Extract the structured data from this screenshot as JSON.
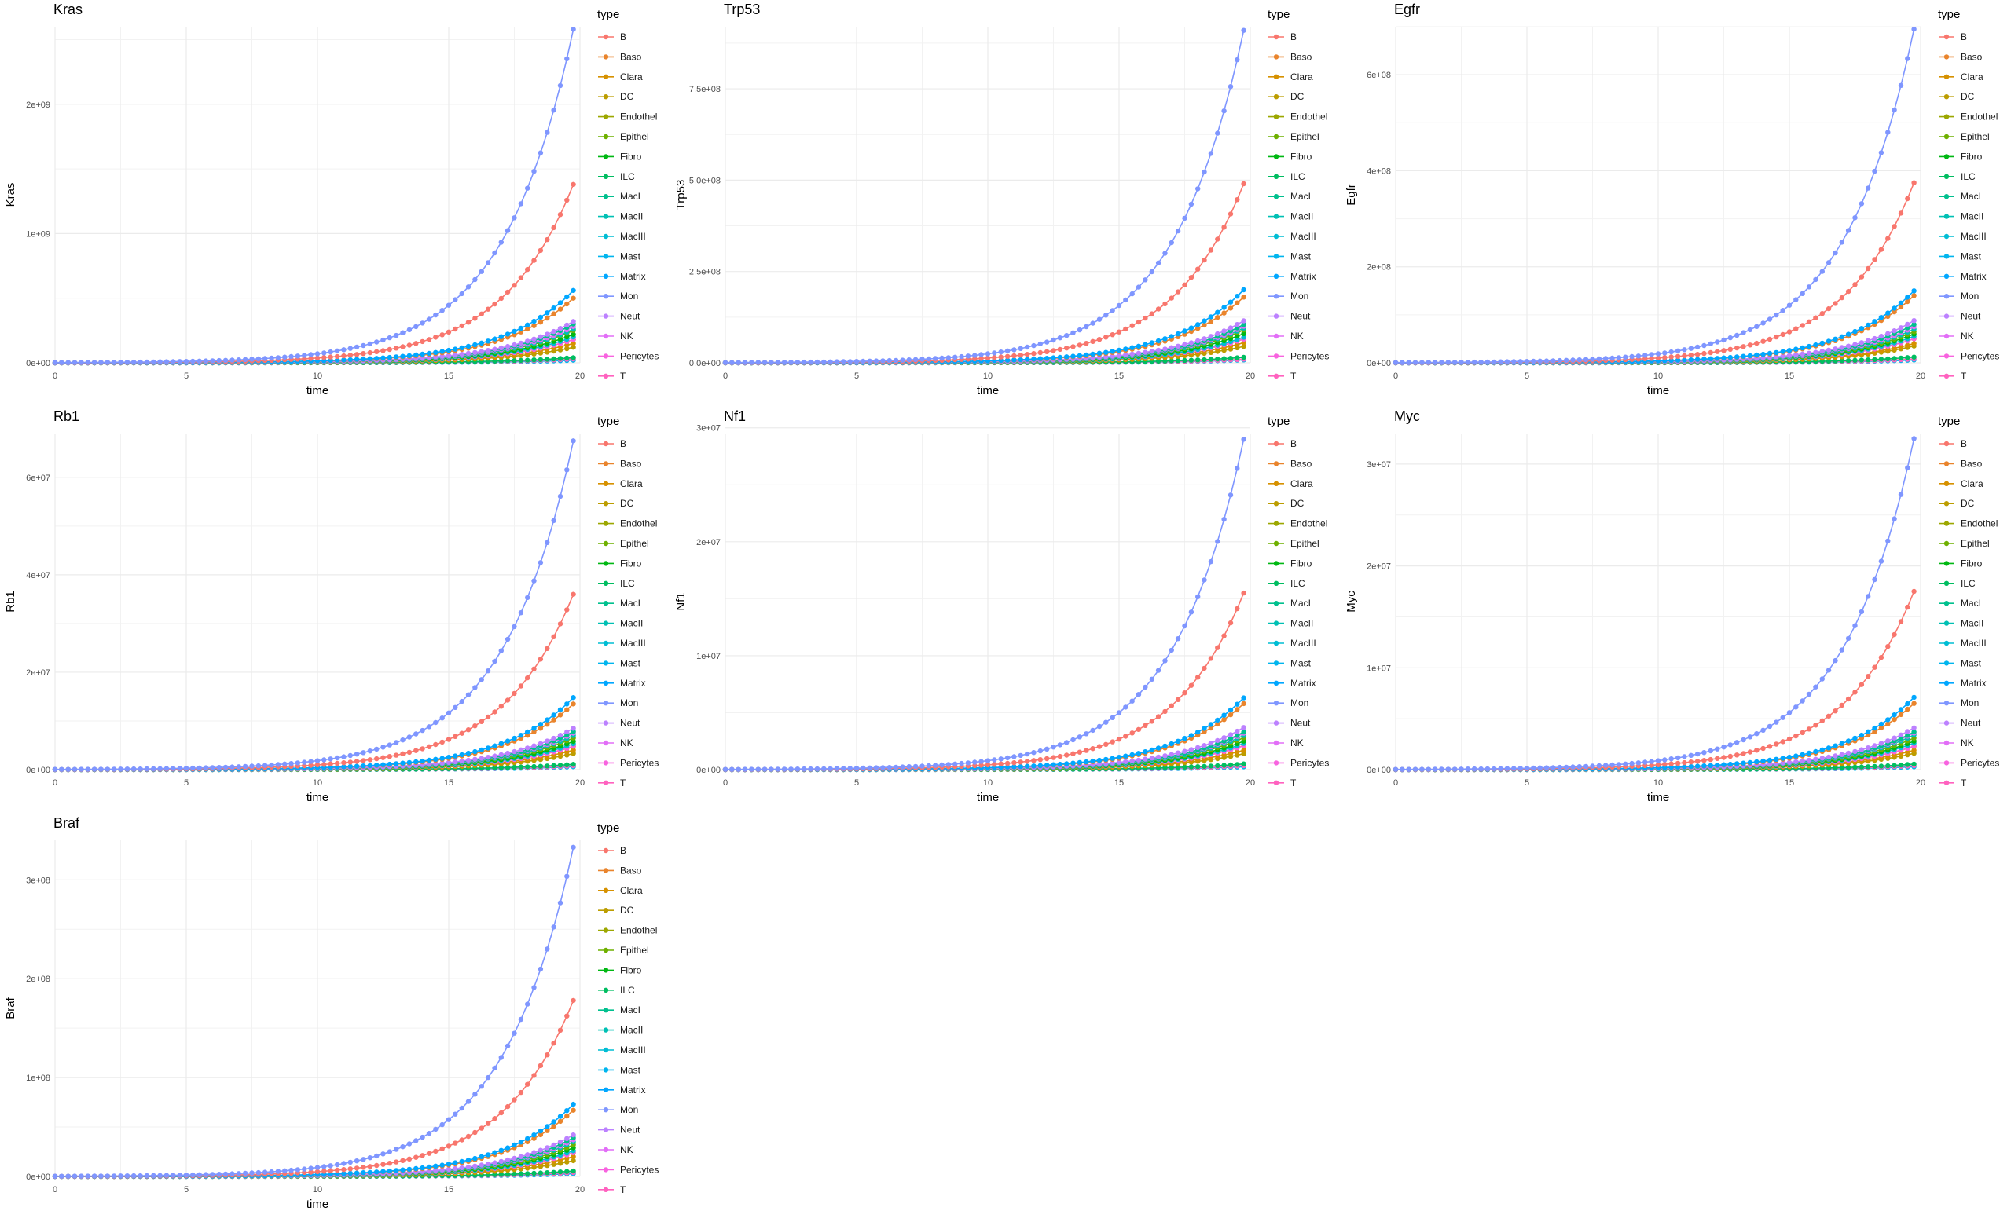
{
  "colors": {
    "B": "#F8766D",
    "Baso": "#E9842C",
    "Clara": "#D69100",
    "DC": "#BC9D00",
    "Endothel": "#9CA700",
    "Epithel": "#6FB000",
    "Fibro": "#00B813",
    "ILC": "#00BD61",
    "MacI": "#00C08E",
    "MacII": "#00C0B4",
    "MacIII": "#00BDD4",
    "Mast": "#00B5EE",
    "Matrix": "#00A7FF",
    "Mon": "#7F96FF",
    "Neut": "#BC81FF",
    "NK": "#E26EF7",
    "Pericytes": "#F863DF",
    "T": "#FF62BF"
  },
  "chart_data": [
    {
      "type": "line",
      "title": "Kras",
      "xlabel": "time",
      "ylabel": "Kras",
      "legend_title": "type",
      "legend_position": "right",
      "xlim": [
        0,
        20
      ],
      "ylim": [
        0,
        2600000000
      ],
      "x_ticks": [
        0,
        5,
        10,
        15,
        20
      ],
      "y_ticks": [
        0,
        1000000000,
        2000000000
      ],
      "y_tick_labels": [
        "0e+00",
        "1e+09",
        "2e+09"
      ],
      "x_range": [
        0,
        19.75
      ],
      "growth": 0.37,
      "series": [
        {
          "name": "B",
          "final": 1380000000
        },
        {
          "name": "Baso",
          "final": 500000000
        },
        {
          "name": "Clara",
          "final": 150000000
        },
        {
          "name": "DC",
          "final": 120000000
        },
        {
          "name": "Endothel",
          "final": 180000000
        },
        {
          "name": "Epithel",
          "final": 250000000
        },
        {
          "name": "Fibro",
          "final": 220000000
        },
        {
          "name": "ILC",
          "final": 40000000
        },
        {
          "name": "MacI",
          "final": 300000000
        },
        {
          "name": "MacII",
          "final": 260000000
        },
        {
          "name": "MacIII",
          "final": 200000000
        },
        {
          "name": "Mast",
          "final": 20000000
        },
        {
          "name": "Matrix",
          "final": 560000000
        },
        {
          "name": "Mon",
          "final": 2580000000
        },
        {
          "name": "Neut",
          "final": 320000000
        },
        {
          "name": "NK",
          "final": 280000000
        },
        {
          "name": "Pericytes",
          "final": 180000000
        },
        {
          "name": "T",
          "final": 30000000
        }
      ]
    },
    {
      "type": "line",
      "title": "Trp53",
      "xlabel": "time",
      "ylabel": "Trp53",
      "legend_title": "type",
      "legend_position": "right",
      "xlim": [
        0,
        20
      ],
      "ylim": [
        0,
        920000000
      ],
      "x_ticks": [
        0,
        5,
        10,
        15,
        20
      ],
      "y_ticks": [
        0,
        250000000,
        500000000,
        750000000
      ],
      "y_tick_labels": [
        "0.0e+00",
        "2.5e+08",
        "5.0e+08",
        "7.5e+08"
      ],
      "x_range": [
        0,
        19.75
      ],
      "growth": 0.37,
      "series": [
        {
          "name": "B",
          "final": 490000000
        },
        {
          "name": "Baso",
          "final": 180000000
        },
        {
          "name": "Clara",
          "final": 55000000
        },
        {
          "name": "DC",
          "final": 45000000
        },
        {
          "name": "Endothel",
          "final": 65000000
        },
        {
          "name": "Epithel",
          "final": 90000000
        },
        {
          "name": "Fibro",
          "final": 80000000
        },
        {
          "name": "ILC",
          "final": 15000000
        },
        {
          "name": "MacI",
          "final": 105000000
        },
        {
          "name": "MacII",
          "final": 95000000
        },
        {
          "name": "MacIII",
          "final": 70000000
        },
        {
          "name": "Mast",
          "final": 8000000
        },
        {
          "name": "Matrix",
          "final": 200000000
        },
        {
          "name": "Mon",
          "final": 910000000
        },
        {
          "name": "Neut",
          "final": 115000000
        },
        {
          "name": "NK",
          "final": 100000000
        },
        {
          "name": "Pericytes",
          "final": 65000000
        },
        {
          "name": "T",
          "final": 10000000
        }
      ]
    },
    {
      "type": "line",
      "title": "Egfr",
      "xlabel": "time",
      "ylabel": "Egfr",
      "legend_title": "type",
      "legend_position": "right",
      "xlim": [
        0,
        20
      ],
      "ylim": [
        0,
        700000000
      ],
      "x_ticks": [
        0,
        5,
        10,
        15,
        20
      ],
      "y_ticks": [
        0,
        200000000,
        400000000,
        600000000
      ],
      "y_tick_labels": [
        "0e+00",
        "2e+08",
        "4e+08",
        "6e+08"
      ],
      "x_range": [
        0,
        19.75
      ],
      "growth": 0.37,
      "series": [
        {
          "name": "B",
          "final": 375000000
        },
        {
          "name": "Baso",
          "final": 140000000
        },
        {
          "name": "Clara",
          "final": 40000000
        },
        {
          "name": "DC",
          "final": 35000000
        },
        {
          "name": "Endothel",
          "final": 50000000
        },
        {
          "name": "Epithel",
          "final": 65000000
        },
        {
          "name": "Fibro",
          "final": 60000000
        },
        {
          "name": "ILC",
          "final": 12000000
        },
        {
          "name": "MacI",
          "final": 80000000
        },
        {
          "name": "MacII",
          "final": 70000000
        },
        {
          "name": "MacIII",
          "final": 55000000
        },
        {
          "name": "Mast",
          "final": 6000000
        },
        {
          "name": "Matrix",
          "final": 150000000
        },
        {
          "name": "Mon",
          "final": 695000000
        },
        {
          "name": "Neut",
          "final": 88000000
        },
        {
          "name": "NK",
          "final": 75000000
        },
        {
          "name": "Pericytes",
          "final": 50000000
        },
        {
          "name": "T",
          "final": 8000000
        }
      ]
    },
    {
      "type": "line",
      "title": "Rb1",
      "xlabel": "time",
      "ylabel": "Rb1",
      "legend_title": "type",
      "legend_position": "right",
      "xlim": [
        0,
        20
      ],
      "ylim": [
        0,
        69000000
      ],
      "x_ticks": [
        0,
        5,
        10,
        15,
        20
      ],
      "y_ticks": [
        0,
        20000000,
        40000000,
        60000000
      ],
      "y_tick_labels": [
        "0e+00",
        "2e+07",
        "4e+07",
        "6e+07"
      ],
      "x_range": [
        0,
        19.75
      ],
      "growth": 0.37,
      "series": [
        {
          "name": "B",
          "final": 36000000
        },
        {
          "name": "Baso",
          "final": 13500000
        },
        {
          "name": "Clara",
          "final": 4000000
        },
        {
          "name": "DC",
          "final": 3300000
        },
        {
          "name": "Endothel",
          "final": 4800000
        },
        {
          "name": "Epithel",
          "final": 6500000
        },
        {
          "name": "Fibro",
          "final": 5800000
        },
        {
          "name": "ILC",
          "final": 1100000
        },
        {
          "name": "MacI",
          "final": 7800000
        },
        {
          "name": "MacII",
          "final": 7000000
        },
        {
          "name": "MacIII",
          "final": 5300000
        },
        {
          "name": "Mast",
          "final": 600000
        },
        {
          "name": "Matrix",
          "final": 14800000
        },
        {
          "name": "Mon",
          "final": 67500000
        },
        {
          "name": "Neut",
          "final": 8500000
        },
        {
          "name": "NK",
          "final": 7500000
        },
        {
          "name": "Pericytes",
          "final": 4800000
        },
        {
          "name": "T",
          "final": 800000
        }
      ]
    },
    {
      "type": "line",
      "title": "Nf1",
      "xlabel": "time",
      "ylabel": "Nf1",
      "legend_title": "type",
      "legend_position": "right",
      "xlim": [
        0,
        20
      ],
      "ylim": [
        0,
        29500000
      ],
      "x_ticks": [
        0,
        5,
        10,
        15,
        20
      ],
      "y_ticks": [
        0,
        10000000,
        20000000,
        30000000
      ],
      "y_tick_labels": [
        "0e+00",
        "1e+07",
        "2e+07",
        "3e+07"
      ],
      "x_range": [
        0,
        19.75
      ],
      "growth": 0.37,
      "series": [
        {
          "name": "B",
          "final": 15500000
        },
        {
          "name": "Baso",
          "final": 5800000
        },
        {
          "name": "Clara",
          "final": 1700000
        },
        {
          "name": "DC",
          "final": 1400000
        },
        {
          "name": "Endothel",
          "final": 2100000
        },
        {
          "name": "Epithel",
          "final": 2800000
        },
        {
          "name": "Fibro",
          "final": 2500000
        },
        {
          "name": "ILC",
          "final": 500000
        },
        {
          "name": "MacI",
          "final": 3300000
        },
        {
          "name": "MacII",
          "final": 3000000
        },
        {
          "name": "MacIII",
          "final": 2300000
        },
        {
          "name": "Mast",
          "final": 250000
        },
        {
          "name": "Matrix",
          "final": 6300000
        },
        {
          "name": "Mon",
          "final": 29000000
        },
        {
          "name": "Neut",
          "final": 3700000
        },
        {
          "name": "NK",
          "final": 3200000
        },
        {
          "name": "Pericytes",
          "final": 2100000
        },
        {
          "name": "T",
          "final": 350000
        }
      ]
    },
    {
      "type": "line",
      "title": "Myc",
      "xlabel": "time",
      "ylabel": "Myc",
      "legend_title": "type",
      "legend_position": "right",
      "xlim": [
        0,
        20
      ],
      "ylim": [
        0,
        33000000
      ],
      "x_ticks": [
        0,
        5,
        10,
        15,
        20
      ],
      "y_ticks": [
        0,
        10000000,
        20000000,
        30000000
      ],
      "y_tick_labels": [
        "0e+00",
        "1e+07",
        "2e+07",
        "3e+07"
      ],
      "x_range": [
        0,
        19.75
      ],
      "growth": 0.37,
      "series": [
        {
          "name": "B",
          "final": 17500000
        },
        {
          "name": "Baso",
          "final": 6500000
        },
        {
          "name": "Clara",
          "final": 1900000
        },
        {
          "name": "DC",
          "final": 1600000
        },
        {
          "name": "Endothel",
          "final": 2300000
        },
        {
          "name": "Epithel",
          "final": 3100000
        },
        {
          "name": "Fibro",
          "final": 2800000
        },
        {
          "name": "ILC",
          "final": 550000
        },
        {
          "name": "MacI",
          "final": 3700000
        },
        {
          "name": "MacII",
          "final": 3400000
        },
        {
          "name": "MacIII",
          "final": 2600000
        },
        {
          "name": "Mast",
          "final": 280000
        },
        {
          "name": "Matrix",
          "final": 7100000
        },
        {
          "name": "Mon",
          "final": 32500000
        },
        {
          "name": "Neut",
          "final": 4100000
        },
        {
          "name": "NK",
          "final": 3600000
        },
        {
          "name": "Pericytes",
          "final": 2300000
        },
        {
          "name": "T",
          "final": 400000
        }
      ]
    },
    {
      "type": "line",
      "title": "Braf",
      "xlabel": "time",
      "ylabel": "Braf",
      "legend_title": "type",
      "legend_position": "right",
      "xlim": [
        0,
        20
      ],
      "ylim": [
        0,
        340000000
      ],
      "x_ticks": [
        0,
        5,
        10,
        15,
        20
      ],
      "y_ticks": [
        0,
        100000000,
        200000000,
        300000000
      ],
      "y_tick_labels": [
        "0e+00",
        "1e+08",
        "2e+08",
        "3e+08"
      ],
      "x_range": [
        0,
        19.75
      ],
      "growth": 0.37,
      "series": [
        {
          "name": "B",
          "final": 178000000
        },
        {
          "name": "Baso",
          "final": 67000000
        },
        {
          "name": "Clara",
          "final": 20000000
        },
        {
          "name": "DC",
          "final": 16000000
        },
        {
          "name": "Endothel",
          "final": 24000000
        },
        {
          "name": "Epithel",
          "final": 32000000
        },
        {
          "name": "Fibro",
          "final": 29000000
        },
        {
          "name": "ILC",
          "final": 5500000
        },
        {
          "name": "MacI",
          "final": 39000000
        },
        {
          "name": "MacII",
          "final": 35000000
        },
        {
          "name": "MacIII",
          "final": 26000000
        },
        {
          "name": "Mast",
          "final": 2800000
        },
        {
          "name": "Matrix",
          "final": 73000000
        },
        {
          "name": "Mon",
          "final": 333000000
        },
        {
          "name": "Neut",
          "final": 42000000
        },
        {
          "name": "NK",
          "final": 37000000
        },
        {
          "name": "Pericytes",
          "final": 24000000
        },
        {
          "name": "T",
          "final": 4000000
        }
      ]
    }
  ]
}
